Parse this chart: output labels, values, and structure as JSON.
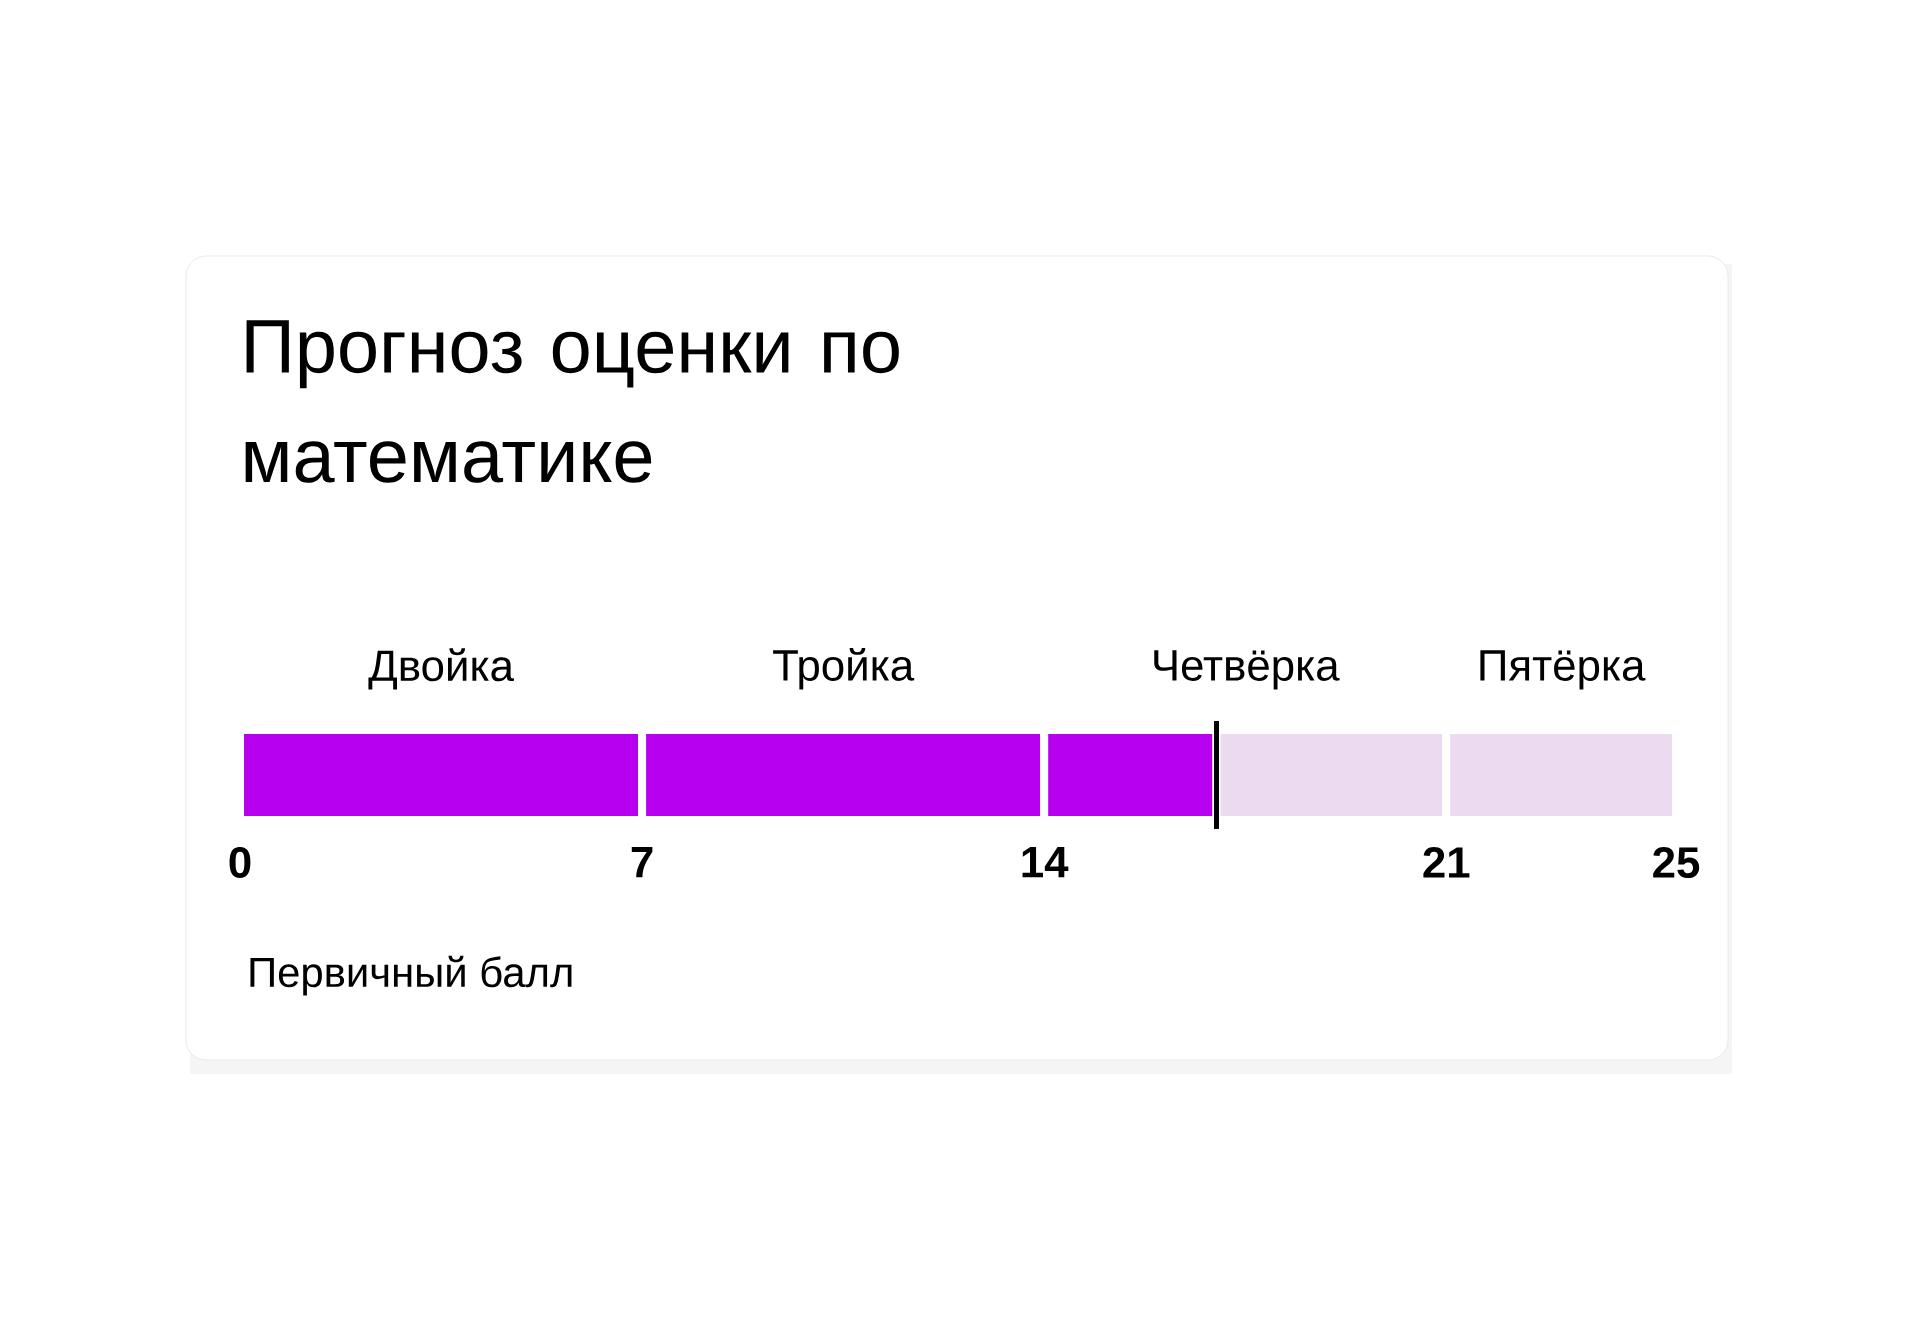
{
  "chart_data": {
    "type": "bar",
    "title": "Прогноз оценки по математике",
    "orientation": "horizontal",
    "stacked": true,
    "categories": [
      null
    ],
    "series": [
      {
        "color": "#b800f0",
        "values": [
          7
        ]
      },
      {
        "color": "#b800f0",
        "values": [
          7
        ]
      },
      {
        "color": "#b800f0",
        "values": [
          3
        ]
      },
      {
        "color": "#ecdaf0",
        "values": [
          4
        ]
      },
      {
        "color": "#ecdaf0",
        "values": [
          4
        ]
      }
    ],
    "annotations": [
      "Двойка",
      "Тройка",
      "Четвёрка",
      "Пятёрка"
    ],
    "xlim": [
      0,
      25
    ],
    "xticks": [
      0,
      7,
      14,
      21,
      25
    ],
    "xlabel": "Первичный балл",
    "ref_lines": [
      {
        "axis": "x",
        "value": 17,
        "color": "#000000"
      }
    ]
  }
}
